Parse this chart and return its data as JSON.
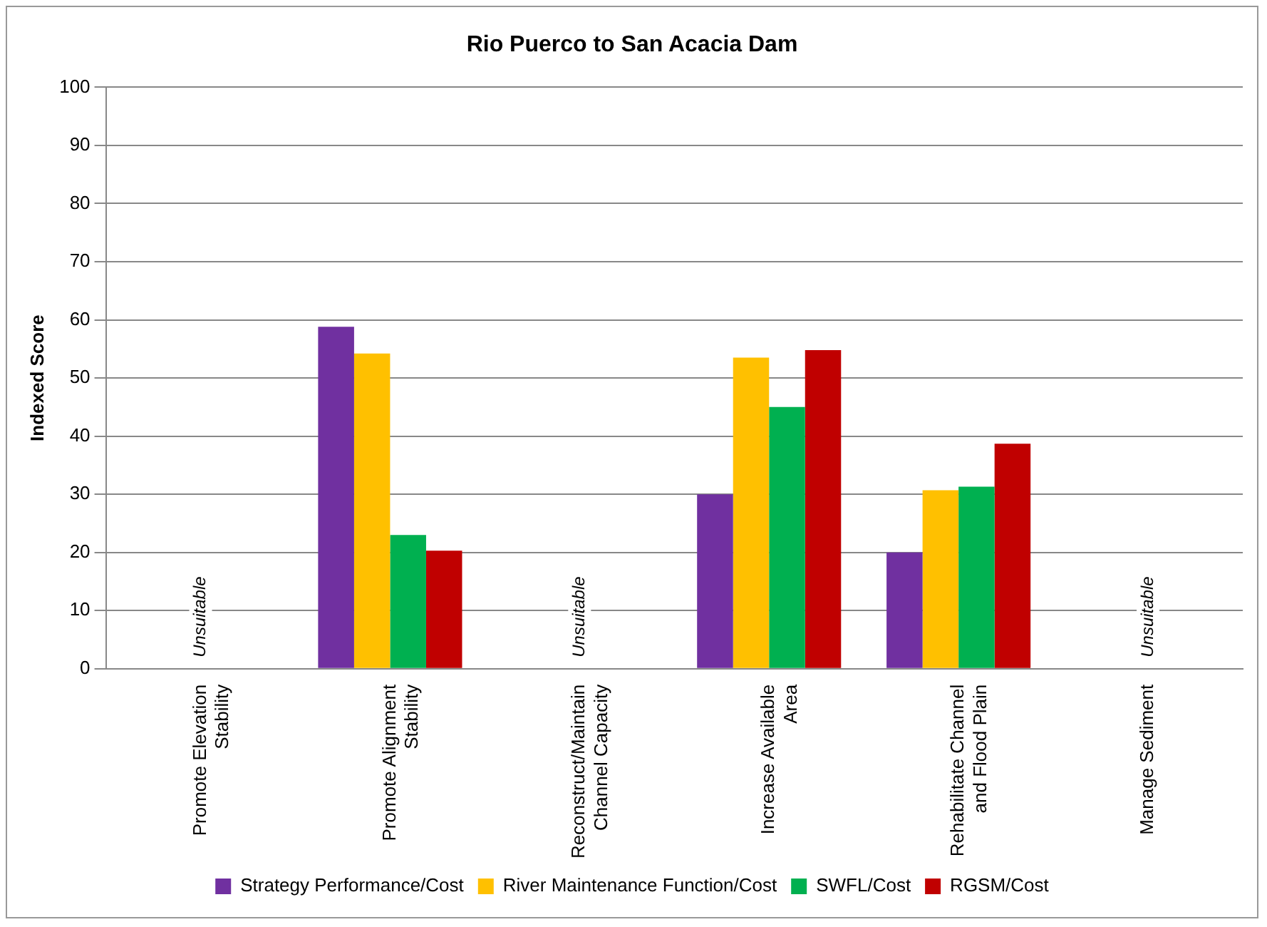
{
  "chart_data": {
    "type": "bar",
    "title": "Rio Puerco to San Acacia Dam",
    "ylabel": "Indexed Score",
    "categories": [
      "Promote Elevation Stability",
      "Promote Alignment Stability",
      "Reconstruct/Maintain Channel Capacity",
      "Increase Available Area",
      "Rehabilitate Channel and Flood Plain",
      "Manage Sediment"
    ],
    "series": [
      {
        "name": "Strategy Performance/Cost",
        "color": "#7030a0",
        "values": [
          null,
          58.8,
          null,
          30,
          20,
          null
        ]
      },
      {
        "name": "River Maintenance Function/Cost",
        "color": "#ffc000",
        "values": [
          null,
          54.2,
          null,
          53.5,
          30.7,
          null
        ]
      },
      {
        "name": "SWFL/Cost",
        "color": "#00b050",
        "values": [
          null,
          23,
          null,
          45,
          31.3,
          null
        ]
      },
      {
        "name": "RGSM/Cost",
        "color": "#c00000",
        "values": [
          null,
          20.3,
          null,
          54.8,
          38.7,
          null
        ]
      }
    ],
    "ylim": [
      0,
      100
    ],
    "yticks": [
      0,
      10,
      20,
      30,
      40,
      50,
      60,
      70,
      80,
      90,
      100
    ],
    "grid": "y",
    "legend": "bottom",
    "annotations": [
      "Unsuitable",
      "Unsuitable",
      "Unsuitable"
    ]
  }
}
